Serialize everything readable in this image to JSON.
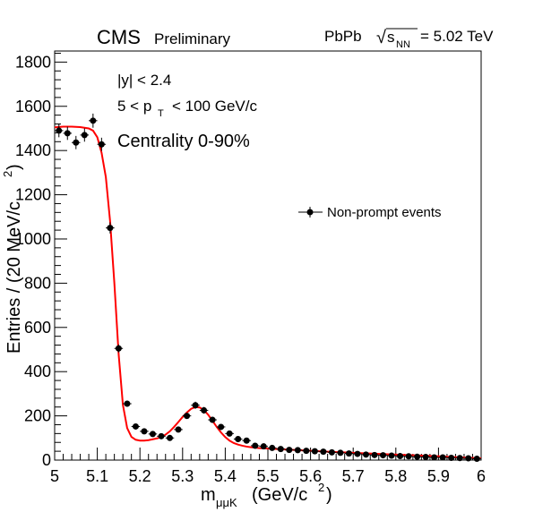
{
  "header": {
    "experiment": "CMS",
    "status": "Preliminary",
    "system": "PbPb",
    "sqrt_symbol": "√",
    "energy_var": "s",
    "energy_sub": "NN",
    "energy_value": "= 5.02 TeV"
  },
  "cuts": {
    "rapidity": "|y| < 2.4",
    "pt_lo": "5 < p",
    "pt_sub": "T",
    "pt_hi": "< 100 GeV/c",
    "centrality": "Centrality 0-90%"
  },
  "colors": {
    "fit": "#ff0000",
    "points": "#000000",
    "axis": "#000000",
    "background": "#ffffff"
  },
  "chart_data": {
    "type": "scatter",
    "title": "",
    "xlabel": "m_μμK (GeV/c²)",
    "xlabel_main": "m",
    "xlabel_sub": "μμK",
    "xlabel_unit": "(GeV/c",
    "xlabel_sup": "2",
    "xlabel_close": ")",
    "ylabel": "Entries / (20 MeV/c²)",
    "ylabel_main": "Entries / (20 MeV/c",
    "ylabel_sup": "2",
    "ylabel_close": ")",
    "xlim": [
      5,
      6
    ],
    "ylim": [
      0,
      1850
    ],
    "x_ticks": [
      "5",
      "5.1",
      "5.2",
      "5.3",
      "5.4",
      "5.5",
      "5.6",
      "5.7",
      "5.8",
      "5.9",
      "6"
    ],
    "y_ticks": [
      "0",
      "200",
      "400",
      "600",
      "800",
      "1000",
      "1200",
      "1400",
      "1600",
      "1800"
    ],
    "grid": false,
    "legend_position": "right",
    "series": [
      {
        "name": "Non-prompt events",
        "type": "scatter",
        "x": [
          5.01,
          5.03,
          5.05,
          5.07,
          5.09,
          5.11,
          5.13,
          5.15,
          5.17,
          5.19,
          5.21,
          5.23,
          5.25,
          5.27,
          5.29,
          5.31,
          5.33,
          5.35,
          5.37,
          5.39,
          5.41,
          5.43,
          5.45,
          5.47,
          5.49,
          5.51,
          5.53,
          5.55,
          5.57,
          5.59,
          5.61,
          5.63,
          5.65,
          5.67,
          5.69,
          5.71,
          5.73,
          5.75,
          5.77,
          5.79,
          5.81,
          5.83,
          5.85,
          5.87,
          5.89,
          5.91,
          5.93,
          5.95,
          5.97,
          5.99
        ],
        "y": [
          1490,
          1478,
          1436,
          1470,
          1535,
          1428,
          1050,
          505,
          255,
          152,
          130,
          118,
          108,
          100,
          138,
          200,
          248,
          225,
          182,
          150,
          120,
          95,
          88,
          65,
          62,
          55,
          50,
          46,
          45,
          42,
          40,
          38,
          35,
          33,
          30,
          28,
          25,
          23,
          22,
          20,
          18,
          17,
          15,
          14,
          12,
          12,
          10,
          9,
          8,
          6
        ],
        "yerr": [
          30,
          30,
          30,
          30,
          32,
          30,
          25,
          18,
          14,
          12,
          11,
          11,
          10,
          10,
          12,
          14,
          16,
          15,
          13,
          12,
          11,
          10,
          9,
          8,
          8,
          7,
          7,
          7,
          7,
          6,
          6,
          6,
          6,
          6,
          5,
          5,
          5,
          5,
          5,
          4,
          4,
          4,
          4,
          4,
          3,
          3,
          3,
          3,
          3,
          2
        ]
      },
      {
        "name": "fit",
        "type": "line",
        "x": [
          5.0,
          5.02,
          5.04,
          5.06,
          5.08,
          5.09,
          5.1,
          5.11,
          5.12,
          5.13,
          5.14,
          5.15,
          5.16,
          5.17,
          5.18,
          5.19,
          5.2,
          5.21,
          5.22,
          5.23,
          5.24,
          5.25,
          5.26,
          5.27,
          5.28,
          5.29,
          5.3,
          5.31,
          5.32,
          5.33,
          5.34,
          5.35,
          5.36,
          5.37,
          5.38,
          5.39,
          5.4,
          5.41,
          5.42,
          5.43,
          5.44,
          5.45,
          5.46,
          5.47,
          5.48,
          5.5,
          5.55,
          5.6,
          5.65,
          5.7,
          5.75,
          5.8,
          5.85,
          5.9,
          5.95,
          6.0
        ],
        "y": [
          1505,
          1508,
          1508,
          1506,
          1500,
          1490,
          1460,
          1390,
          1280,
          1080,
          800,
          480,
          250,
          145,
          105,
          92,
          88,
          88,
          90,
          94,
          98,
          104,
          115,
          130,
          150,
          172,
          195,
          215,
          232,
          240,
          238,
          226,
          205,
          178,
          150,
          125,
          104,
          88,
          77,
          70,
          65,
          61,
          58,
          56,
          54,
          52,
          47,
          42,
          37,
          33,
          29,
          25,
          21,
          17,
          12,
          8
        ]
      }
    ]
  }
}
